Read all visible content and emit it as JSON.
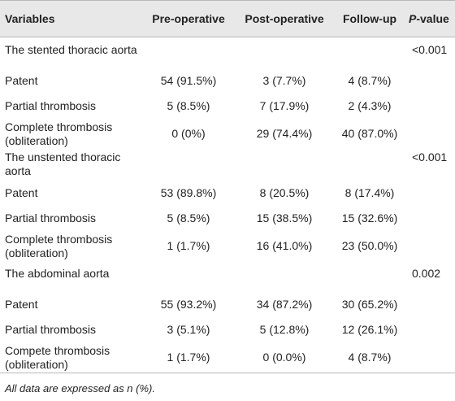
{
  "header": {
    "variables": "Variables",
    "pre": "Pre-operative",
    "post": "Post-operative",
    "follow": "Follow-up",
    "p_italic": "P",
    "p_rest": "-value"
  },
  "sections": [
    {
      "title": "The stented thoracic aorta",
      "p_value": "<0.001",
      "rows": [
        {
          "label": "Patent",
          "pre": "54 (91.5%)",
          "post": "3 (7.7%)",
          "follow": "4 (8.7%)"
        },
        {
          "label": "Partial thrombosis",
          "pre": "5 (8.5%)",
          "post": "7 (17.9%)",
          "follow": "2 (4.3%)"
        },
        {
          "label": "Complete thrombosis (obliteration)",
          "pre": "0 (0%)",
          "post": "29 (74.4%)",
          "follow": "40 (87.0%)"
        }
      ]
    },
    {
      "title": "The unstented thoracic aorta",
      "p_value": "<0.001",
      "rows": [
        {
          "label": "Patent",
          "pre": "53 (89.8%)",
          "post": "8 (20.5%)",
          "follow": "8 (17.4%)"
        },
        {
          "label": "Partial thrombosis",
          "pre": "5 (8.5%)",
          "post": "15 (38.5%)",
          "follow": "15 (32.6%)"
        },
        {
          "label": "Complete thrombosis (obliteration)",
          "pre": "1 (1.7%)",
          "post": "16 (41.0%)",
          "follow": "23 (50.0%)"
        }
      ]
    },
    {
      "title": "The abdominal aorta",
      "p_value": "0.002",
      "rows": [
        {
          "label": "Patent",
          "pre": "55 (93.2%)",
          "post": "34 (87.2%)",
          "follow": "30 (65.2%)"
        },
        {
          "label": "Partial thrombosis",
          "pre": "3 (5.1%)",
          "post": "5 (12.8%)",
          "follow": "12 (26.1%)"
        },
        {
          "label": "Compete thrombosis (obliteration)",
          "pre": "1 (1.7%)",
          "post": "0 (0.0%)",
          "follow": "4 (8.7%)"
        }
      ]
    }
  ],
  "footnote": "All data are expressed as n (%)."
}
